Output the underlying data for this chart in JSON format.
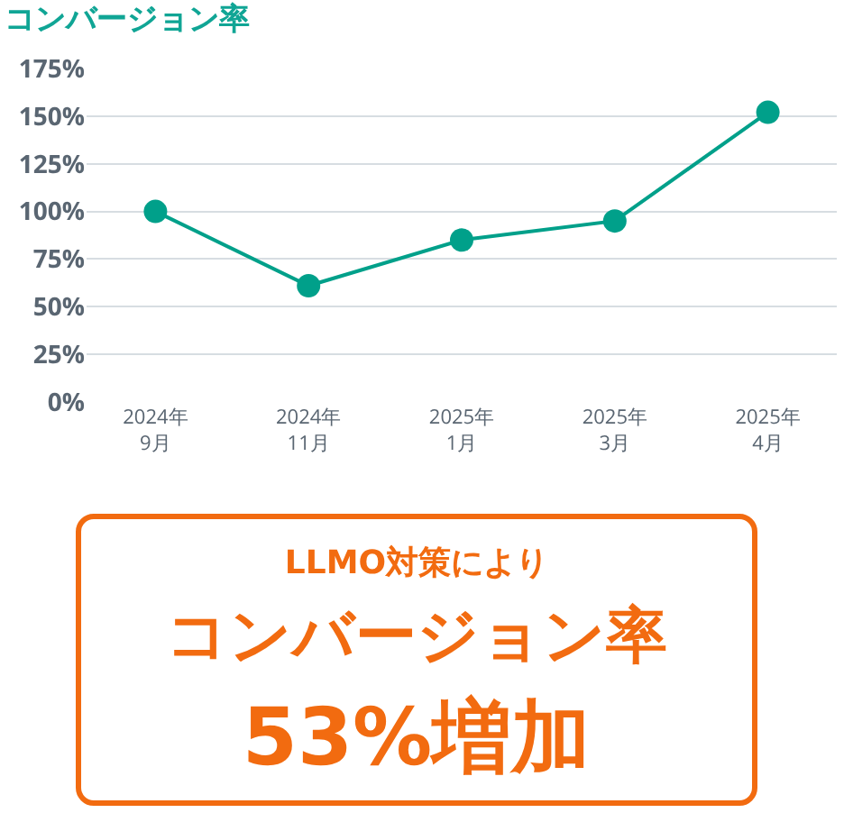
{
  "chart_data": {
    "type": "line",
    "title": "コンバージョン率",
    "categories": [
      "2024年\n9月",
      "2024年\n11月",
      "2025年\n1月",
      "2025年\n3月",
      "2025年\n4月"
    ],
    "series": [
      {
        "color": "#00a08a",
        "values": [
          100,
          61,
          85,
          95,
          152
        ]
      }
    ],
    "ylim": [
      0,
      175
    ],
    "yticks": [
      {
        "value": 0,
        "label": "0%"
      },
      {
        "value": 25,
        "label": "25%"
      },
      {
        "value": 50,
        "label": "50%"
      },
      {
        "value": 75,
        "label": "75%"
      },
      {
        "value": 100,
        "label": "100%"
      },
      {
        "value": 125,
        "label": "125%"
      },
      {
        "value": 150,
        "label": "150%"
      },
      {
        "value": 175,
        "label": "175%"
      }
    ],
    "grid": "y",
    "marker": "circle",
    "line_style": "solid",
    "legend": false,
    "annotations": [
      "LLMO対策により",
      "コンバージョン率",
      "53%増加"
    ]
  }
}
